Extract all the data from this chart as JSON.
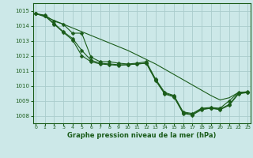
{
  "title": "Graphe pression niveau de la mer (hPa)",
  "bg_color": "#cce8e8",
  "grid_color": "#aacccc",
  "line_color": "#1a5c1a",
  "x_values": [
    0,
    1,
    2,
    3,
    4,
    5,
    6,
    7,
    8,
    9,
    10,
    11,
    12,
    13,
    14,
    15,
    16,
    17,
    18,
    19,
    20,
    21,
    22,
    23
  ],
  "line1": [
    1014.8,
    1014.7,
    1014.3,
    1014.1,
    1013.5,
    1013.5,
    1011.9,
    1011.6,
    1011.6,
    1011.5,
    1011.45,
    1011.5,
    1011.6,
    1010.45,
    1009.55,
    1009.35,
    1008.25,
    1008.15,
    1008.5,
    1008.55,
    1008.5,
    1009.0,
    1009.55,
    1009.55
  ],
  "line2": [
    1014.8,
    1014.65,
    1014.15,
    1013.6,
    1013.15,
    1012.35,
    1011.7,
    1011.5,
    1011.45,
    1011.4,
    1011.4,
    1011.45,
    1011.5,
    1010.4,
    1009.5,
    1009.3,
    1008.2,
    1008.1,
    1008.45,
    1008.5,
    1008.45,
    1008.75,
    1009.5,
    1009.6
  ],
  "line3": [
    1014.8,
    1014.65,
    1014.1,
    1013.55,
    1013.05,
    1012.0,
    1011.6,
    1011.45,
    1011.4,
    1011.35,
    1011.4,
    1011.45,
    1011.5,
    1010.35,
    1009.45,
    1009.25,
    1008.15,
    1008.05,
    1008.4,
    1008.5,
    1008.4,
    1008.7,
    1009.45,
    1009.55
  ],
  "line_straight": [
    1014.8,
    1014.6,
    1014.35,
    1014.1,
    1013.85,
    1013.6,
    1013.35,
    1013.1,
    1012.85,
    1012.6,
    1012.35,
    1012.05,
    1011.75,
    1011.45,
    1011.1,
    1010.75,
    1010.4,
    1010.05,
    1009.7,
    1009.35,
    1009.05,
    1009.2,
    1009.55,
    1009.6
  ],
  "ylim": [
    1007.5,
    1015.5
  ],
  "yticks": [
    1008,
    1009,
    1010,
    1011,
    1012,
    1013,
    1014,
    1015
  ],
  "marker_size": 2.5
}
